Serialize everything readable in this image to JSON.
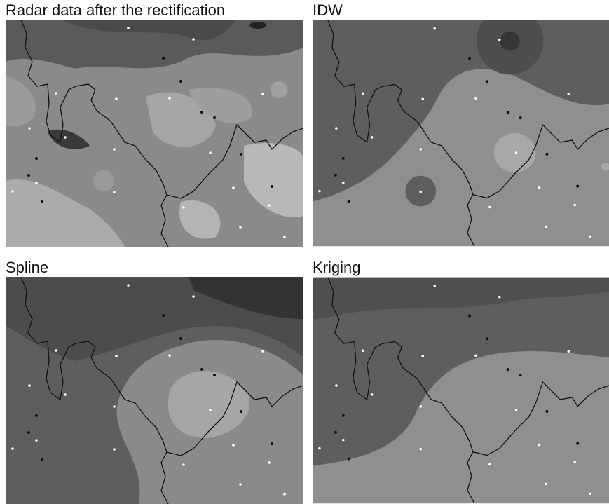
{
  "panels": [
    {
      "title": "Radar data after the rectification"
    },
    {
      "title": "IDW"
    },
    {
      "title": "Spline"
    },
    {
      "title": "Kriging"
    }
  ]
}
